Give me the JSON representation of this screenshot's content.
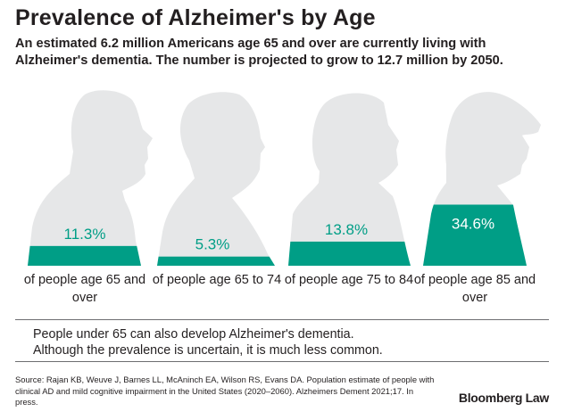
{
  "title": "Prevalence of Alzheimer's by Age",
  "subtitle": "An estimated 6.2 million Americans age 65 and over are currently living with Alzheimer's dementia. The number is projected to grow to 12.7 million by 2050.",
  "chart_data": {
    "type": "bar",
    "title": "Prevalence of Alzheimer's by Age",
    "categories": [
      "of people age 65 and over",
      "of people age 65 to 74",
      "of people age 75 to 84",
      "of people age 85 and over"
    ],
    "values": [
      11.3,
      5.3,
      13.8,
      34.6
    ],
    "value_labels": [
      "11.3%",
      "5.3%",
      "13.8%",
      "34.6%"
    ],
    "ylim": [
      0,
      100
    ],
    "unit": "%"
  },
  "colors": {
    "fill": "#009e86",
    "silhouette": "#e6e7e8",
    "text": "#231f20"
  },
  "note": [
    "People under 65 can also develop Alzheimer's dementia.",
    "Although the prevalence is uncertain, it is much less common."
  ],
  "source": "Source: Rajan KB, Weuve J, Barnes LL, McAninch EA, Wilson RS, Evans DA. Population estimate of people with clinical AD and mild cognitive impairment in the United States (2020–2060). Alzheimers Dement 2021;17. In press.",
  "logo": "Bloomberg Law"
}
